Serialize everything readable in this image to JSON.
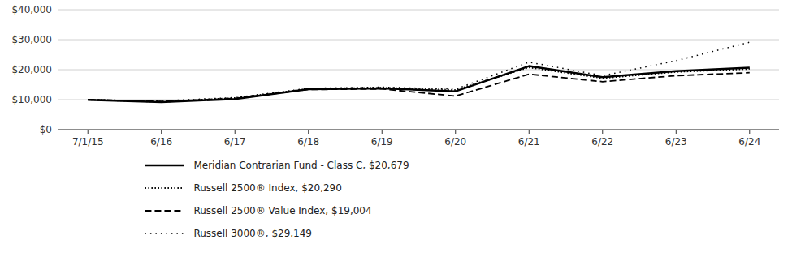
{
  "chart_data": {
    "type": "line",
    "categories": [
      "7/1/15",
      "6/16",
      "6/17",
      "6/18",
      "6/19",
      "6/20",
      "6/21",
      "6/22",
      "6/23",
      "6/24"
    ],
    "series": [
      {
        "name": "Meridian Contrarian Fund - Class C, $20,679",
        "color": "#000000",
        "line_style": "solid",
        "values": [
          9900,
          9200,
          10200,
          13500,
          13800,
          12800,
          21200,
          17500,
          19500,
          20679
        ]
      },
      {
        "name": "Russell 2500® Index, $20,290",
        "color": "#000000",
        "line_style": "densely_dotted",
        "values": [
          10000,
          9300,
          10500,
          13600,
          14000,
          13200,
          20800,
          17200,
          19300,
          20290
        ]
      },
      {
        "name": "Russell 2500® Value Index, $19,004",
        "color": "#000000",
        "line_style": "dashed",
        "values": [
          10000,
          9400,
          10400,
          13400,
          13600,
          11200,
          18500,
          16000,
          18000,
          19004
        ]
      },
      {
        "name": "Russell 3000®, $29,149",
        "color": "#000000",
        "line_style": "loosely_dotted",
        "values": [
          10000,
          9600,
          10700,
          13800,
          14200,
          13500,
          22500,
          18000,
          23000,
          29149
        ]
      }
    ],
    "ylim": [
      0,
      40000
    ],
    "yticks": [
      {
        "value": 0,
        "label": "$0"
      },
      {
        "value": 10000,
        "label": "$10,000"
      },
      {
        "value": 20000,
        "label": "$20,000"
      },
      {
        "value": 30000,
        "label": "$30,000"
      },
      {
        "value": 40000,
        "label": "$40,000"
      }
    ],
    "grid": true,
    "legend": "bottom"
  }
}
